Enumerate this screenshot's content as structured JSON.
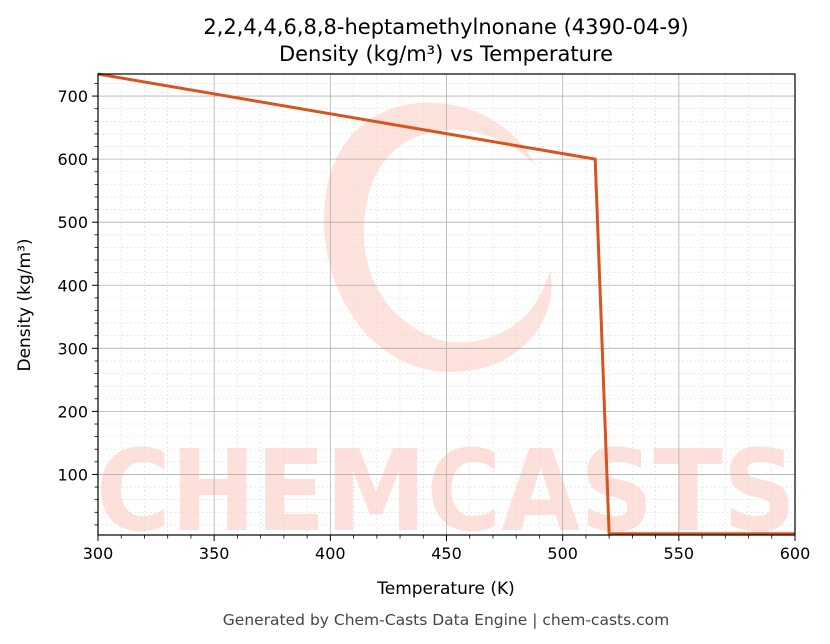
{
  "chart_data": {
    "type": "line",
    "title": "2,2,4,4,6,8,8-heptamethylnonane (4390-04-9)",
    "subtitle": "Density (kg/m³) vs Temperature",
    "xlabel": "Temperature (K)",
    "ylabel": "Density (kg/m³)",
    "xlim": [
      300,
      600
    ],
    "ylim": [
      4,
      735
    ],
    "xticks": [
      300,
      350,
      400,
      450,
      500,
      550,
      600
    ],
    "yticks": [
      100,
      200,
      300,
      400,
      500,
      600,
      700
    ],
    "grid": true,
    "series": [
      {
        "color": "#d9531e",
        "x": [
          300,
          514,
          520,
          600
        ],
        "y": [
          735,
          600,
          6,
          6
        ]
      }
    ]
  },
  "watermark": {
    "text": "CHEMCASTS",
    "color": "#fde0da"
  },
  "footer": "Generated by Chem-Casts Data Engine | chem-casts.com"
}
